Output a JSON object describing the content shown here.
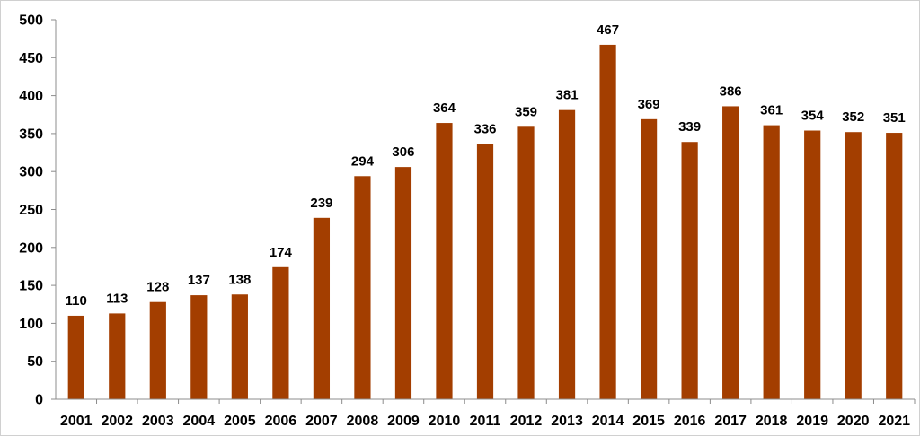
{
  "chart_data": {
    "type": "bar",
    "title": "",
    "xlabel": "",
    "ylabel": "",
    "categories": [
      "2001",
      "2002",
      "2003",
      "2004",
      "2005",
      "2006",
      "2007",
      "2008",
      "2009",
      "2010",
      "2011",
      "2012",
      "2013",
      "2014",
      "2015",
      "2016",
      "2017",
      "2018",
      "2019",
      "2020",
      "2021"
    ],
    "values": [
      110,
      113,
      128,
      137,
      138,
      174,
      239,
      294,
      306,
      364,
      336,
      359,
      381,
      467,
      369,
      339,
      386,
      361,
      354,
      352,
      351
    ],
    "ylim": [
      0,
      500
    ],
    "yticks": [
      0,
      50,
      100,
      150,
      200,
      250,
      300,
      350,
      400,
      450,
      500
    ],
    "grid": false,
    "legend": "none",
    "data_labels": true,
    "bar_color": "#a33e00",
    "axis_color": "#8c8c8c"
  }
}
